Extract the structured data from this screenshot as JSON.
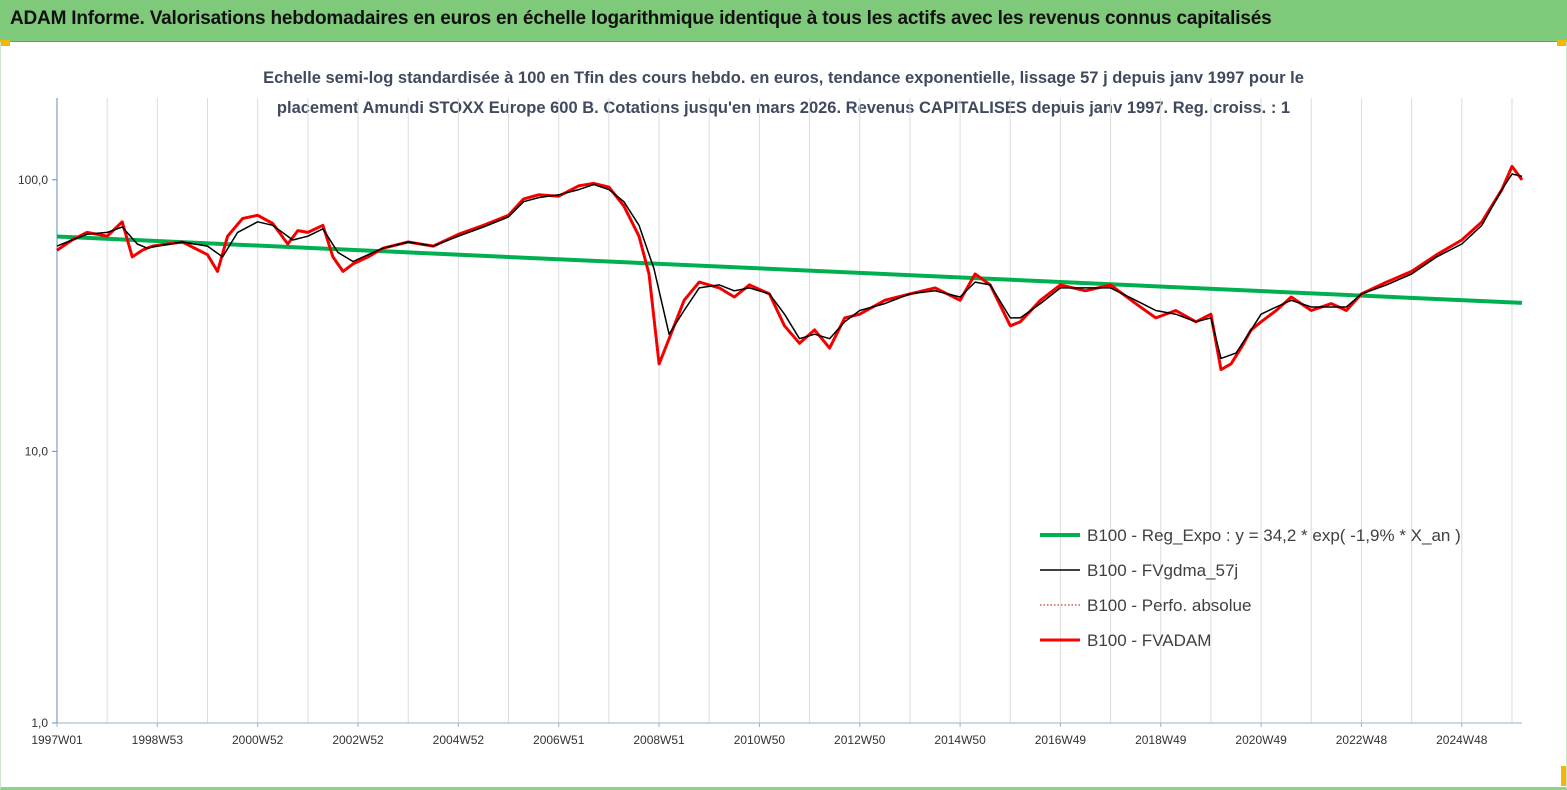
{
  "banner": {
    "title": "ADAM Informe. Valorisations hebdomadaires en euros en échelle logarithmique identique à tous les actifs avec les revenus connus capitalisés"
  },
  "chart_data": {
    "type": "line",
    "title_line1": "Echelle semi-log standardisée à 100 en Tfin des cours hebdo. en euros, tendance exponentielle, lissage 57 j depuis janv 1997 pour le",
    "title_line2": "placement Amundi STOXX Europe 600 B. Cotations jusqu'en mars 2026. Revenus CAPITALISES depuis janv 1997. Reg. croiss. : 1",
    "y_scale": "log",
    "ylim": [
      1,
      200
    ],
    "y_ticks": [
      {
        "value": 1,
        "label": "1,0"
      },
      {
        "value": 10,
        "label": "10,0"
      },
      {
        "value": 100,
        "label": "100,0"
      }
    ],
    "x_range": [
      1997.0,
      2026.2
    ],
    "x_ticks": [
      {
        "value": 1997.0,
        "label": "1997W01"
      },
      {
        "value": 1999.0,
        "label": "1998W53"
      },
      {
        "value": 2001.0,
        "label": "2000W52"
      },
      {
        "value": 2003.0,
        "label": "2002W52"
      },
      {
        "value": 2005.0,
        "label": "2004W52"
      },
      {
        "value": 2007.0,
        "label": "2006W51"
      },
      {
        "value": 2009.0,
        "label": "2008W51"
      },
      {
        "value": 2011.0,
        "label": "2010W50"
      },
      {
        "value": 2013.0,
        "label": "2012W50"
      },
      {
        "value": 2015.0,
        "label": "2014W50"
      },
      {
        "value": 2017.0,
        "label": "2016W49"
      },
      {
        "value": 2019.0,
        "label": "2018W49"
      },
      {
        "value": 2021.0,
        "label": "2020W49"
      },
      {
        "value": 2023.0,
        "label": "2022W48"
      },
      {
        "value": 2025.0,
        "label": "2024W48"
      }
    ],
    "grid": "vertical",
    "legend_position": "bottom-right",
    "series": [
      {
        "name": "B100 - Reg_Expo : y = 34,2 * exp( -1,9% *  X_an )",
        "color": "#00b050",
        "style": "solid-thick",
        "x": [
          1997.0,
          2026.2
        ],
        "y": [
          61.8,
          35.2
        ]
      },
      {
        "name": "B100 - FVgdma_57j",
        "color": "#000000",
        "style": "solid-thin",
        "x": [
          1997.0,
          1997.3,
          1997.6,
          1998.0,
          1998.3,
          1998.6,
          1998.8,
          1999.0,
          1999.5,
          2000.0,
          2000.3,
          2000.6,
          2001.0,
          2001.3,
          2001.7,
          2002.0,
          2002.3,
          2002.6,
          2002.9,
          2003.2,
          2003.5,
          2004.0,
          2004.5,
          2005.0,
          2005.5,
          2006.0,
          2006.3,
          2006.6,
          2007.0,
          2007.4,
          2007.7,
          2008.0,
          2008.3,
          2008.6,
          2008.9,
          2009.2,
          2009.5,
          2009.8,
          2010.2,
          2010.5,
          2010.8,
          2011.2,
          2011.5,
          2011.8,
          2012.1,
          2012.4,
          2012.7,
          2013.0,
          2013.5,
          2014.0,
          2014.5,
          2015.0,
          2015.3,
          2015.6,
          2016.0,
          2016.2,
          2016.6,
          2017.0,
          2017.5,
          2018.0,
          2018.5,
          2018.9,
          2019.3,
          2019.7,
          2020.0,
          2020.2,
          2020.5,
          2020.8,
          2021.0,
          2021.3,
          2021.6,
          2022.0,
          2022.4,
          2022.7,
          2023.0,
          2023.5,
          2024.0,
          2024.5,
          2025.0,
          2025.4,
          2025.8,
          2026.0,
          2026.2
        ],
        "y": [
          57,
          60,
          63,
          64,
          67,
          58,
          56,
          57,
          59,
          57,
          52,
          64,
          70,
          68,
          60,
          62,
          66,
          54,
          50,
          53,
          56,
          59,
          57,
          62,
          67,
          73,
          83,
          86,
          88,
          92,
          96,
          92,
          83,
          68,
          47,
          27,
          33,
          40,
          41,
          39,
          40,
          38,
          32,
          26,
          27,
          26,
          30,
          33,
          35,
          38,
          39,
          37,
          42,
          41,
          31,
          31,
          35,
          40,
          40,
          40,
          36,
          33,
          32,
          30,
          31,
          22,
          23,
          28,
          32,
          34,
          36,
          34,
          34,
          34,
          38,
          41,
          45,
          52,
          58,
          68,
          92,
          105,
          103
        ]
      },
      {
        "name": "B100 - Perfo. absolue",
        "color": "#c00000",
        "style": "dotted",
        "x": [
          1997.0,
          1997.3,
          1997.6,
          1998.0,
          1998.3,
          1998.5,
          1998.7,
          1998.9,
          1999.2,
          1999.5,
          2000.0,
          2000.2,
          2000.4,
          2000.7,
          2001.0,
          2001.3,
          2001.6,
          2001.8,
          2002.0,
          2002.3,
          2002.5,
          2002.7,
          2002.9,
          2003.2,
          2003.5,
          2004.0,
          2004.5,
          2005.0,
          2005.5,
          2006.0,
          2006.3,
          2006.6,
          2007.0,
          2007.4,
          2007.7,
          2008.0,
          2008.3,
          2008.6,
          2008.8,
          2009.0,
          2009.2,
          2009.5,
          2009.8,
          2010.2,
          2010.5,
          2010.8,
          2011.2,
          2011.5,
          2011.8,
          2012.1,
          2012.4,
          2012.7,
          2013.0,
          2013.5,
          2014.0,
          2014.5,
          2015.0,
          2015.3,
          2015.6,
          2016.0,
          2016.2,
          2016.6,
          2017.0,
          2017.5,
          2018.0,
          2018.5,
          2018.9,
          2019.3,
          2019.7,
          2020.0,
          2020.2,
          2020.4,
          2020.6,
          2020.8,
          2021.0,
          2021.3,
          2021.6,
          2022.0,
          2022.4,
          2022.7,
          2023.0,
          2023.5,
          2024.0,
          2024.5,
          2025.0,
          2025.4,
          2025.8,
          2026.0,
          2026.2
        ],
        "y": [
          55,
          60,
          64,
          62,
          70,
          52,
          55,
          57,
          58,
          59,
          53,
          46,
          62,
          72,
          74,
          69,
          58,
          65,
          64,
          68,
          52,
          46,
          49,
          52,
          56,
          59,
          57,
          63,
          68,
          74,
          85,
          88,
          87,
          95,
          97,
          94,
          80,
          62,
          45,
          21,
          26,
          36,
          42,
          40,
          37,
          41,
          38,
          29,
          25,
          28,
          24,
          31,
          32,
          36,
          38,
          40,
          36,
          45,
          41,
          29,
          30,
          36,
          41,
          39,
          41,
          35,
          31,
          33,
          30,
          32,
          20,
          21,
          24,
          28,
          30,
          33,
          37,
          33,
          35,
          33,
          38,
          42,
          46,
          53,
          60,
          70,
          92,
          112,
          100
        ]
      },
      {
        "name": "B100 - FVADAM",
        "color": "#ff0000",
        "style": "solid-thick",
        "x": [
          1997.0,
          1997.3,
          1997.6,
          1998.0,
          1998.3,
          1998.5,
          1998.7,
          1998.9,
          1999.2,
          1999.5,
          2000.0,
          2000.2,
          2000.4,
          2000.7,
          2001.0,
          2001.3,
          2001.6,
          2001.8,
          2002.0,
          2002.3,
          2002.5,
          2002.7,
          2002.9,
          2003.2,
          2003.5,
          2004.0,
          2004.5,
          2005.0,
          2005.5,
          2006.0,
          2006.3,
          2006.6,
          2007.0,
          2007.4,
          2007.7,
          2008.0,
          2008.3,
          2008.6,
          2008.8,
          2009.0,
          2009.2,
          2009.5,
          2009.8,
          2010.2,
          2010.5,
          2010.8,
          2011.2,
          2011.5,
          2011.8,
          2012.1,
          2012.4,
          2012.7,
          2013.0,
          2013.5,
          2014.0,
          2014.5,
          2015.0,
          2015.3,
          2015.6,
          2016.0,
          2016.2,
          2016.6,
          2017.0,
          2017.5,
          2018.0,
          2018.5,
          2018.9,
          2019.3,
          2019.7,
          2020.0,
          2020.2,
          2020.4,
          2020.6,
          2020.8,
          2021.0,
          2021.3,
          2021.6,
          2022.0,
          2022.4,
          2022.7,
          2023.0,
          2023.5,
          2024.0,
          2024.5,
          2025.0,
          2025.4,
          2025.8,
          2026.0,
          2026.2
        ],
        "y": [
          55,
          60,
          64,
          62,
          70,
          52,
          55,
          57,
          58,
          59,
          53,
          46,
          62,
          72,
          74,
          69,
          58,
          65,
          64,
          68,
          52,
          46,
          49,
          52,
          56,
          59,
          57,
          63,
          68,
          74,
          85,
          88,
          87,
          95,
          97,
          94,
          80,
          62,
          45,
          21,
          26,
          36,
          42,
          40,
          37,
          41,
          38,
          29,
          25,
          28,
          24,
          31,
          32,
          36,
          38,
          40,
          36,
          45,
          41,
          29,
          30,
          36,
          41,
          39,
          41,
          35,
          31,
          33,
          30,
          32,
          20,
          21,
          24,
          28,
          30,
          33,
          37,
          33,
          35,
          33,
          38,
          42,
          46,
          53,
          60,
          70,
          92,
          112,
          100
        ]
      }
    ]
  }
}
